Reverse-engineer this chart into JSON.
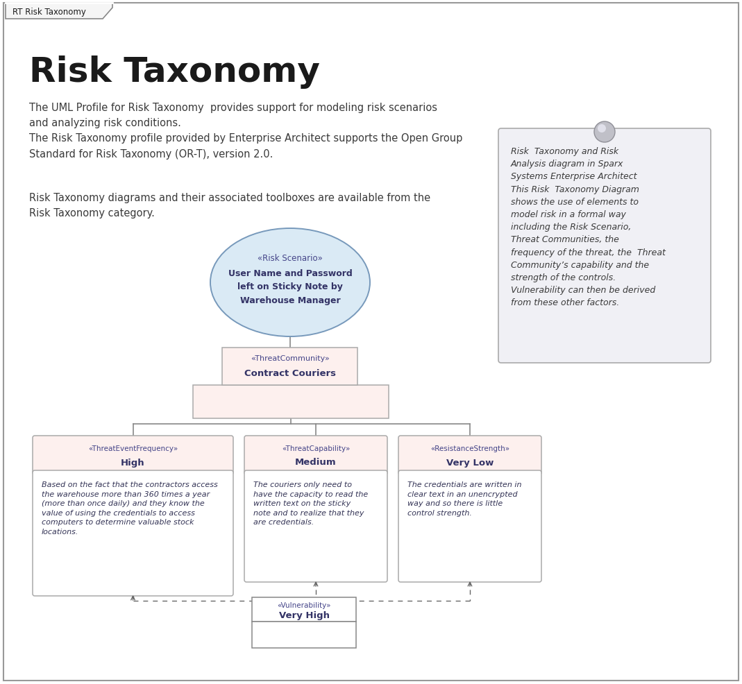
{
  "title": "Risk Taxonomy",
  "tab_label": "RT Risk Taxonomy",
  "body_text1": "The UML Profile for Risk Taxonomy  provides support for modeling risk scenarios\nand analyzing risk conditions.\nThe Risk Taxonomy profile provided by Enterprise Architect supports the Open Group\nStandard for Risk Taxonomy (OR-T), version 2.0.",
  "body_text2": "Risk Taxonomy diagrams and their associated toolboxes are available from the\nRisk Taxonomy category.",
  "note_text": "Risk  Taxonomy and Risk\nAnalysis diagram in Sparx\nSystems Enterprise Architect\nThis Risk  Taxonomy Diagram\nshows the use of elements to\nmodel risk in a formal way\nincluding the Risk Scenario,\nThreat Communities, the\nfrequency of the threat, the  Threat\nCommunity’s capability and the\nstrength of the controls.\nVulnerability can then be derived\nfrom these other factors.",
  "ellipse_stereotype": "«Risk Scenario»",
  "ellipse_name1": "User Name and Password",
  "ellipse_name2": "left on Sticky Note by",
  "ellipse_name3": "Warehouse Manager",
  "threat_community_stereotype": "«ThreatCommunity»",
  "threat_community_name": "Contract Couriers",
  "freq_stereotype": "«ThreatEventFrequency»",
  "freq_name": "High",
  "cap_stereotype": "«ThreatCapability»",
  "cap_name": "Medium",
  "res_stereotype": "«ResistanceStrength»",
  "res_name": "Very Low",
  "vuln_stereotype": "«Vulnerability»",
  "vuln_name": "Very High",
  "freq_body": "Based on the fact that the contractors access\nthe warehouse more than 360 times a year\n(more than once daily) and they know the\nvalue of using the credentials to access\ncomputers to determine valuable stock\nlocations.",
  "cap_body": "The couriers only need to\nhave the capacity to read the\nwritten text on the sticky\nnote and to realize that they\nare credentials.",
  "res_body": "The credentials are written in\nclear text in an unencrypted\nway and so there is little\ncontrol strength.",
  "bg_color": "#ffffff",
  "border_color": "#999999",
  "title_color": "#1a1a1a",
  "body_text_color": "#3a3a3a",
  "ellipse_fill": "#daeaf5",
  "ellipse_border": "#7799bb",
  "ellipse_text_color": "#2a2060",
  "tc_header_fill": "#fdf0ee",
  "tc_body_fill": "#fdf0ee",
  "tc_border": "#aaaaaa",
  "box_header_fill": "#fdf0ee",
  "box_body_fill": "#ffffff",
  "box_border": "#aaaaaa",
  "note_fill": "#f0f0f5",
  "note_border": "#aaaaaa",
  "note_text_color": "#3a3a3a",
  "vuln_fill": "#ffffff",
  "vuln_border": "#888888",
  "line_color": "#888888",
  "arrow_color": "#666666",
  "stereo_color": "#444488",
  "name_color": "#333366"
}
